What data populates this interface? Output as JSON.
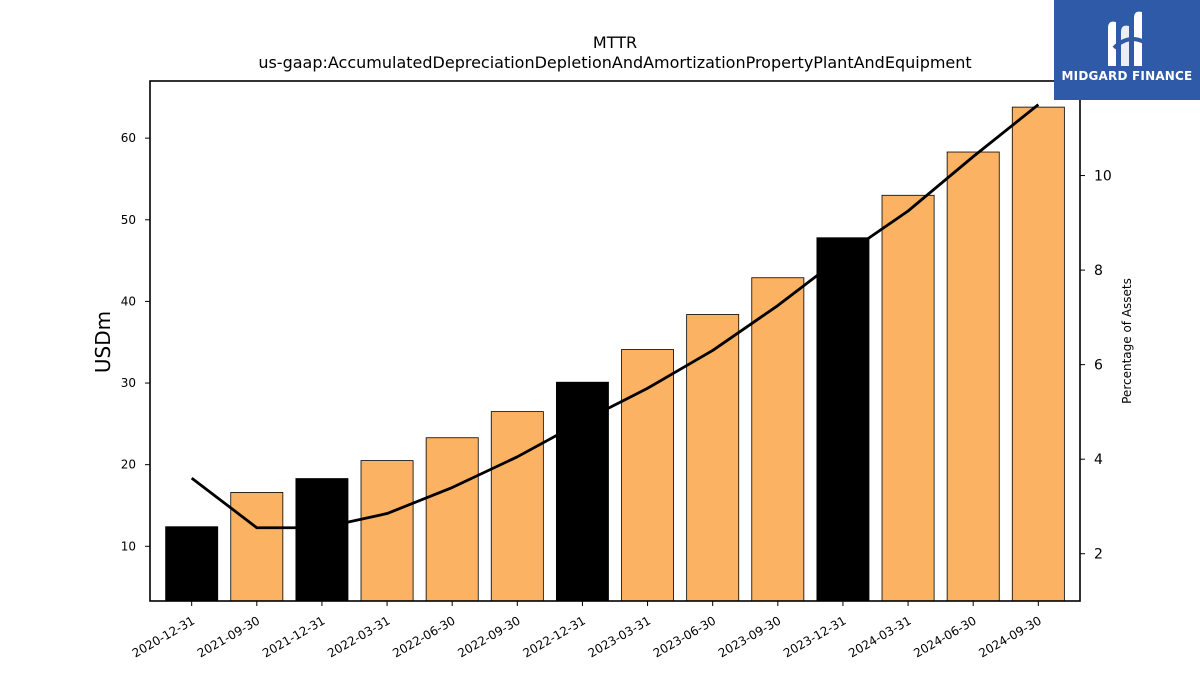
{
  "brand": {
    "name": "MIDGARD FINANCE",
    "bg": "#2e5aa8"
  },
  "chart_data": {
    "type": "bar",
    "title": "MTTR",
    "subtitle": "us-gaap:AccumulatedDepreciationDepletionAndAmortizationPropertyPlantAndEquipment",
    "ylabel": "USDm",
    "y2label": "Percentage of Assets",
    "ylim": [
      3.3,
      67
    ],
    "y2lim": [
      1.0,
      12.0
    ],
    "yticks": [
      10,
      20,
      30,
      40,
      50,
      60
    ],
    "y2ticks": [
      2,
      4,
      6,
      8,
      10
    ],
    "categories": [
      "2020-12-31",
      "2021-09-30",
      "2021-12-31",
      "2022-03-31",
      "2022-06-30",
      "2022-09-30",
      "2022-12-31",
      "2023-03-31",
      "2023-06-30",
      "2023-09-30",
      "2023-12-31",
      "2024-03-31",
      "2024-06-30",
      "2024-09-30"
    ],
    "series": [
      {
        "type": "bar",
        "values": [
          12.4,
          16.6,
          18.3,
          20.5,
          23.3,
          26.5,
          30.1,
          34.1,
          38.4,
          42.9,
          47.8,
          53.0,
          58.3,
          63.8
        ],
        "colors": [
          "#000000",
          "#fbb262",
          "#000000",
          "#fbb262",
          "#fbb262",
          "#fbb262",
          "#000000",
          "#fbb262",
          "#fbb262",
          "#fbb262",
          "#000000",
          "#fbb262",
          "#fbb262",
          "#fbb262"
        ]
      },
      {
        "type": "line",
        "axis": "right",
        "color": "#000000",
        "values": [
          3.6,
          2.55,
          2.55,
          2.85,
          3.4,
          4.05,
          4.8,
          5.5,
          6.3,
          7.25,
          8.3,
          9.25,
          10.4,
          11.5
        ]
      }
    ],
    "grid": false,
    "legend": "none"
  }
}
